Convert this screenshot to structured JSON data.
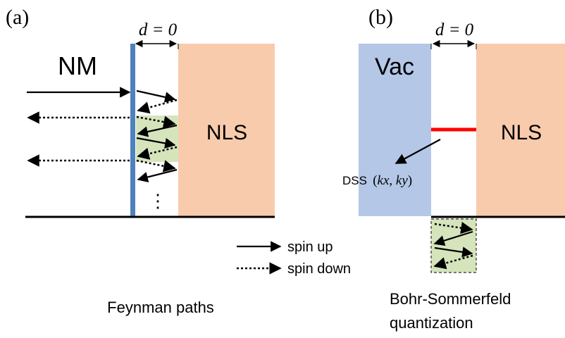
{
  "panel_a": {
    "label": "(a)",
    "gap_label": "d = 0",
    "nm_label": "NM",
    "nls_label": "NLS",
    "ellipsis": "⋮",
    "caption": "Feynman paths"
  },
  "panel_b": {
    "label": "(b)",
    "gap_label": "d = 0",
    "vac_label": "Vac",
    "nls_label": "NLS",
    "dss_label": "DSS",
    "dss_kx": "kx",
    "dss_ky": "ky",
    "caption_line1": "Bohr-Sommerfeld",
    "caption_line2": "quantization"
  },
  "legend": {
    "spin_up": "spin up",
    "spin_down": "spin down"
  },
  "colors": {
    "nm_barrier": "#4f81bd",
    "nls_region": "#f8cbad",
    "vac_region": "#b4c7e7",
    "path_highlight": "#d6e4bc",
    "dss_line": "#ff0000"
  }
}
